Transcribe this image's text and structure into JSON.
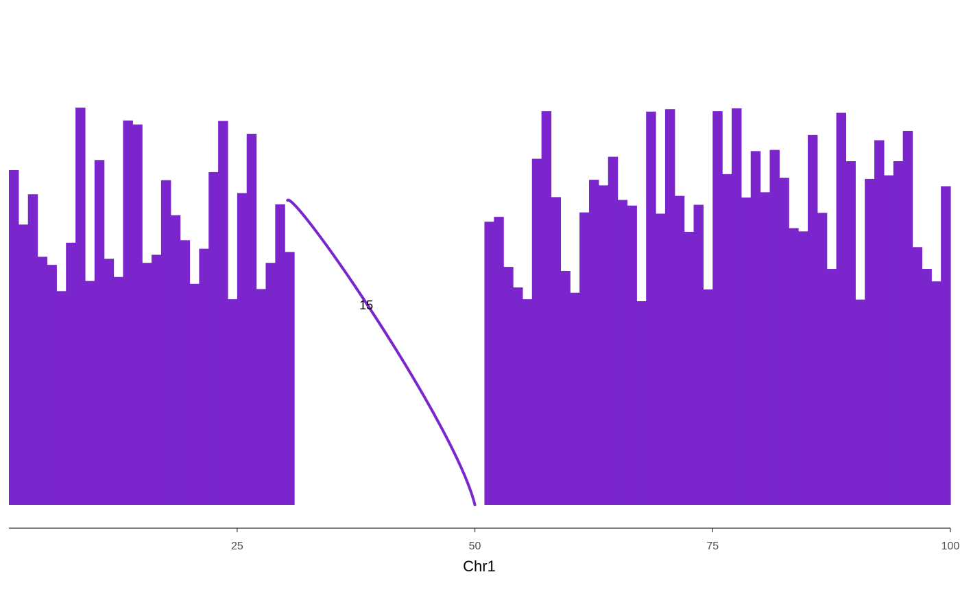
{
  "chart_data": {
    "type": "bar",
    "xlabel": "Chr1",
    "xlim": [
      1,
      100
    ],
    "ylim": [
      0,
      1
    ],
    "x_ticks": [
      25,
      50,
      75,
      100
    ],
    "grid": false,
    "colors": {
      "bar": "#7B26CD",
      "arc": "#7B26CD",
      "axis": "#333333"
    },
    "bars": {
      "x_start": 1,
      "values": [
        0.83,
        0.695,
        0.77,
        0.615,
        0.595,
        0.53,
        0.65,
        0.985,
        0.555,
        0.855,
        0.61,
        0.565,
        0.953,
        0.943,
        0.6,
        0.62,
        0.805,
        0.718,
        0.656,
        0.548,
        0.635,
        0.825,
        0.952,
        0.51,
        0.773,
        0.92,
        0.535,
        0.6,
        0.745,
        0.627,
        null,
        null,
        null,
        null,
        null,
        null,
        null,
        null,
        null,
        null,
        null,
        null,
        null,
        null,
        null,
        null,
        null,
        null,
        null,
        null,
        0.702,
        0.714,
        0.59,
        0.539,
        0.51,
        0.858,
        0.976,
        0.763,
        0.58,
        0.526,
        0.725,
        0.806,
        0.792,
        0.863,
        0.756,
        0.742,
        0.505,
        0.975,
        0.722,
        0.981,
        0.766,
        0.677,
        0.744,
        0.534,
        0.976,
        0.82,
        0.983,
        0.762,
        0.877,
        0.775,
        0.88,
        0.811,
        0.686,
        0.678,
        0.917,
        0.724,
        0.585,
        0.972,
        0.852,
        0.509,
        0.808,
        0.904,
        0.817,
        0.852,
        0.927,
        0.639,
        0.585,
        0.554,
        0.79
      ]
    },
    "arcs": [
      {
        "from": 30.3,
        "to": 50,
        "label": "15"
      }
    ]
  }
}
